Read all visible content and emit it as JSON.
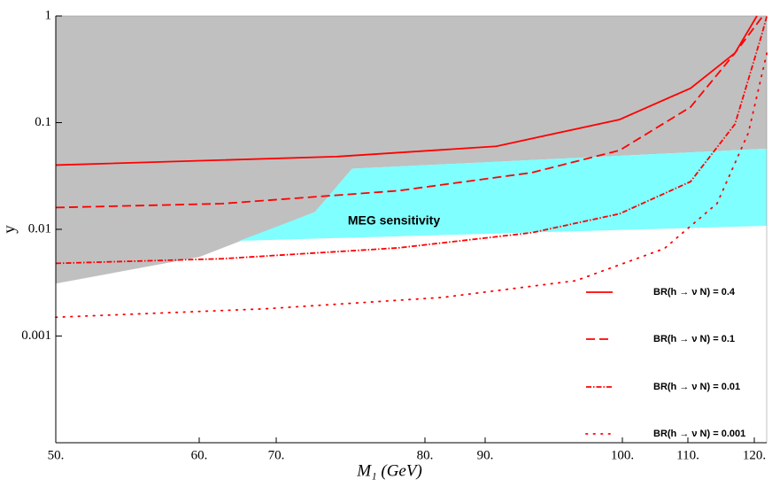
{
  "chart_data": {
    "type": "line",
    "x_label": "M₁ (GeV)",
    "y_label": "y",
    "log_y": true,
    "xlim": [
      50,
      121.9
    ],
    "ylim": [
      0.0001,
      1
    ],
    "xticks": [
      {
        "value": 50,
        "label": "50."
      },
      {
        "value": 60,
        "label": "60."
      },
      {
        "value": 70,
        "label": "70."
      },
      {
        "value": 80,
        "label": "80."
      },
      {
        "value": 90,
        "label": "90."
      },
      {
        "value": 100,
        "label": "100."
      },
      {
        "value": 110,
        "label": "110."
      },
      {
        "value": 120,
        "label": "120."
      }
    ],
    "yticks": [
      1,
      0.1,
      0.01,
      0.001
    ],
    "legend": "lower right",
    "regions": [
      {
        "color": "#c0c0c0",
        "x": [
          50,
          121.9,
          121.9,
          75.1,
          72.6,
          60,
          50
        ],
        "y": [
          1,
          1,
          0.057,
          0.037,
          0.0145,
          0.0055,
          0.0031
        ]
      },
      {
        "color": "#7fffff",
        "x": [
          75.1,
          121.9,
          121.9,
          65.2,
          72.6
        ],
        "y": [
          0.037,
          0.057,
          0.0108,
          0.0078,
          0.0145
        ]
      }
    ],
    "annotation": "MEG  sensitivity",
    "series": [
      {
        "name": "BR(h → ν N) = 0.4",
        "color": "#ff0000",
        "dash": "solid",
        "x": [
          50,
          74.0,
          90.8,
          99.8,
          110.4,
          117.1,
          120.4
        ],
        "values": [
          0.04,
          0.048,
          0.06,
          0.107,
          0.21,
          0.45,
          1
        ]
      },
      {
        "name": "BR(h → ν N) = 0.1",
        "color": "#ff0000",
        "dash": "dashed",
        "x": [
          50,
          62.9,
          78.2,
          93.4,
          99.8,
          110.4,
          117.1,
          121.3
        ],
        "values": [
          0.016,
          0.0174,
          0.023,
          0.034,
          0.055,
          0.14,
          0.45,
          1
        ]
      },
      {
        "name": "BR(h → ν N) = 0.01",
        "color": "#ff0000",
        "dash": "dashdot",
        "x": [
          50,
          62.9,
          78.2,
          93.4,
          99.8,
          110.4,
          117.1,
          121.1,
          121.9
        ],
        "values": [
          0.0048,
          0.0053,
          0.0067,
          0.0093,
          0.014,
          0.028,
          0.097,
          0.66,
          1
        ]
      },
      {
        "name": "BR(h → ν N) = 0.001",
        "color": "#ff0000",
        "dash": "dotted",
        "x": [
          50,
          68.6,
          82.9,
          96.6,
          106.4,
          114.4,
          119.1,
          121.9
        ],
        "values": [
          0.0015,
          0.0018,
          0.0023,
          0.0033,
          0.0066,
          0.0175,
          0.08,
          0.45
        ]
      }
    ]
  }
}
